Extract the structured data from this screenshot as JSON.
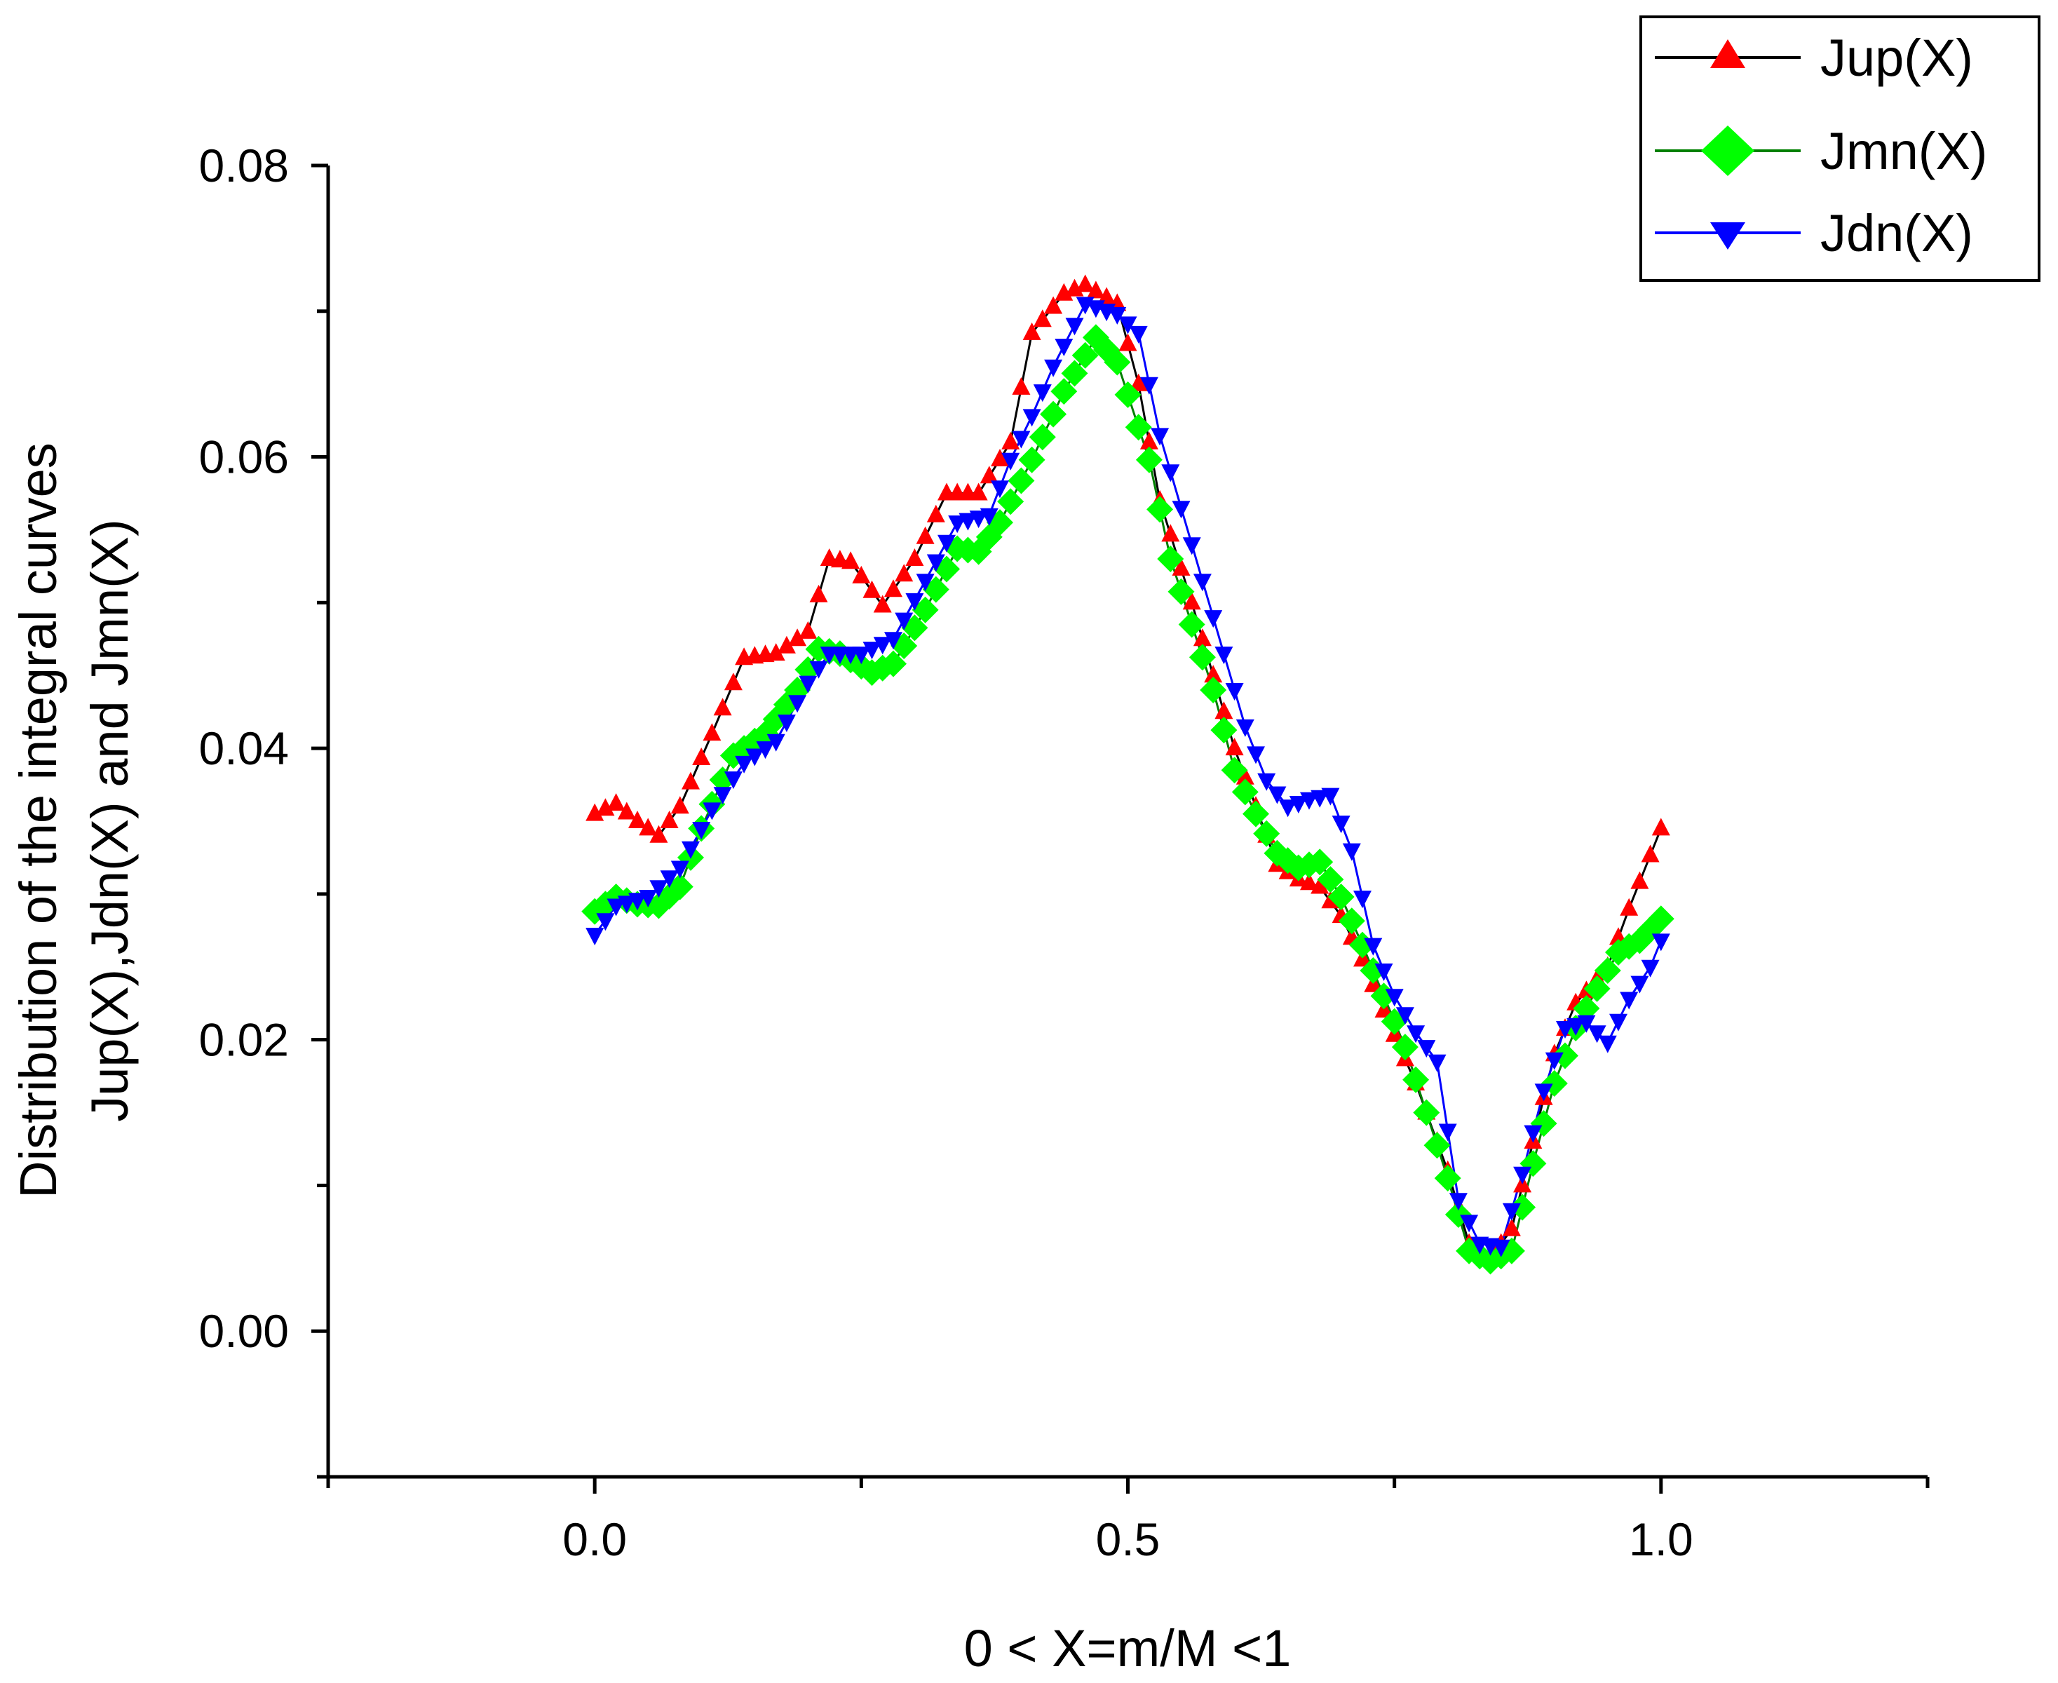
{
  "chart_data": {
    "type": "line",
    "title": "",
    "xlabel": "0 < X=m/M <1",
    "ylabel_lines": [
      "Distribution of the integral curves",
      "Jup(X),Jdn(X) and Jmn(X)"
    ],
    "xlim": [
      -0.25,
      1.25
    ],
    "ylim": [
      -0.01,
      0.08
    ],
    "x_ticks": [
      0.0,
      0.5,
      1.0
    ],
    "x_tick_labels": [
      "0.0",
      "0.5",
      "1.0"
    ],
    "x_minor_ticks": [
      -0.25,
      0.25,
      0.75,
      1.25
    ],
    "y_ticks": [
      0.0,
      0.02,
      0.04,
      0.06,
      0.08
    ],
    "y_tick_labels": [
      "0.00",
      "0.02",
      "0.04",
      "0.06",
      "0.08"
    ],
    "y_minor_ticks": [
      -0.01,
      0.01,
      0.03,
      0.05,
      0.07
    ],
    "grid": false,
    "legend_position": "top-right",
    "sample_step": 0.01,
    "series": [
      {
        "name": "Jup(X)",
        "label": "Jup(X)",
        "line_color": "#000000",
        "marker_color": "#ff0000",
        "marker": "triangle-up",
        "anchors": [
          [
            0.0,
            0.0355
          ],
          [
            0.02,
            0.0362
          ],
          [
            0.04,
            0.035
          ],
          [
            0.06,
            0.034
          ],
          [
            0.08,
            0.036
          ],
          [
            0.11,
            0.041
          ],
          [
            0.14,
            0.0462
          ],
          [
            0.17,
            0.0465
          ],
          [
            0.2,
            0.048
          ],
          [
            0.22,
            0.053
          ],
          [
            0.24,
            0.0528
          ],
          [
            0.27,
            0.0498
          ],
          [
            0.3,
            0.053
          ],
          [
            0.33,
            0.0575
          ],
          [
            0.36,
            0.0575
          ],
          [
            0.39,
            0.061
          ],
          [
            0.41,
            0.0685
          ],
          [
            0.44,
            0.0712
          ],
          [
            0.46,
            0.0718
          ],
          [
            0.49,
            0.0705
          ],
          [
            0.51,
            0.065
          ],
          [
            0.53,
            0.057
          ],
          [
            0.56,
            0.05
          ],
          [
            0.58,
            0.045
          ],
          [
            0.6,
            0.04
          ],
          [
            0.62,
            0.036
          ],
          [
            0.64,
            0.032
          ],
          [
            0.66,
            0.031
          ],
          [
            0.68,
            0.0305
          ],
          [
            0.7,
            0.0285
          ],
          [
            0.72,
            0.0255
          ],
          [
            0.74,
            0.022
          ],
          [
            0.77,
            0.017
          ],
          [
            0.8,
            0.011
          ],
          [
            0.82,
            0.006
          ],
          [
            0.84,
            0.005
          ],
          [
            0.86,
            0.007
          ],
          [
            0.88,
            0.013
          ],
          [
            0.9,
            0.019
          ],
          [
            0.92,
            0.0225
          ],
          [
            0.95,
            0.025
          ],
          [
            0.97,
            0.029
          ],
          [
            1.0,
            0.0345
          ]
        ]
      },
      {
        "name": "Jmn(X)",
        "label": "Jmn(X)",
        "line_color": "#008000",
        "marker_color": "#00ff00",
        "marker": "diamond",
        "anchors": [
          [
            0.0,
            0.0288
          ],
          [
            0.02,
            0.0298
          ],
          [
            0.04,
            0.0293
          ],
          [
            0.06,
            0.0292
          ],
          [
            0.08,
            0.0305
          ],
          [
            0.1,
            0.0345
          ],
          [
            0.13,
            0.0395
          ],
          [
            0.16,
            0.041
          ],
          [
            0.19,
            0.044
          ],
          [
            0.21,
            0.0468
          ],
          [
            0.23,
            0.0465
          ],
          [
            0.26,
            0.0452
          ],
          [
            0.28,
            0.0458
          ],
          [
            0.31,
            0.0495
          ],
          [
            0.34,
            0.0537
          ],
          [
            0.36,
            0.0535
          ],
          [
            0.38,
            0.0555
          ],
          [
            0.41,
            0.0598
          ],
          [
            0.44,
            0.0645
          ],
          [
            0.47,
            0.0682
          ],
          [
            0.49,
            0.0665
          ],
          [
            0.52,
            0.0598
          ],
          [
            0.54,
            0.053
          ],
          [
            0.56,
            0.0485
          ],
          [
            0.58,
            0.044
          ],
          [
            0.6,
            0.0385
          ],
          [
            0.62,
            0.0355
          ],
          [
            0.64,
            0.0328
          ],
          [
            0.66,
            0.0318
          ],
          [
            0.68,
            0.0322
          ],
          [
            0.7,
            0.0298
          ],
          [
            0.72,
            0.0265
          ],
          [
            0.74,
            0.023
          ],
          [
            0.76,
            0.0195
          ],
          [
            0.78,
            0.015
          ],
          [
            0.8,
            0.0105
          ],
          [
            0.82,
            0.0055
          ],
          [
            0.84,
            0.0048
          ],
          [
            0.86,
            0.0055
          ],
          [
            0.88,
            0.0115
          ],
          [
            0.9,
            0.017
          ],
          [
            0.92,
            0.0208
          ],
          [
            0.94,
            0.0235
          ],
          [
            0.96,
            0.026
          ],
          [
            0.98,
            0.0268
          ],
          [
            1.0,
            0.0283
          ]
        ]
      },
      {
        "name": "Jdn(X)",
        "label": "Jdn(X)",
        "line_color": "#0000ff",
        "marker_color": "#0000ff",
        "marker": "triangle-down",
        "anchors": [
          [
            0.0,
            0.0272
          ],
          [
            0.02,
            0.0292
          ],
          [
            0.05,
            0.0298
          ],
          [
            0.08,
            0.0318
          ],
          [
            0.11,
            0.0358
          ],
          [
            0.14,
            0.039
          ],
          [
            0.17,
            0.0405
          ],
          [
            0.2,
            0.0445
          ],
          [
            0.22,
            0.0465
          ],
          [
            0.25,
            0.0465
          ],
          [
            0.28,
            0.0475
          ],
          [
            0.31,
            0.0515
          ],
          [
            0.34,
            0.0555
          ],
          [
            0.37,
            0.056
          ],
          [
            0.39,
            0.0598
          ],
          [
            0.41,
            0.0628
          ],
          [
            0.43,
            0.0662
          ],
          [
            0.46,
            0.0705
          ],
          [
            0.49,
            0.0698
          ],
          [
            0.51,
            0.0685
          ],
          [
            0.53,
            0.0615
          ],
          [
            0.55,
            0.0565
          ],
          [
            0.57,
            0.0515
          ],
          [
            0.59,
            0.0465
          ],
          [
            0.61,
            0.0415
          ],
          [
            0.63,
            0.0378
          ],
          [
            0.65,
            0.036
          ],
          [
            0.67,
            0.0365
          ],
          [
            0.69,
            0.0368
          ],
          [
            0.71,
            0.033
          ],
          [
            0.73,
            0.0265
          ],
          [
            0.75,
            0.023
          ],
          [
            0.77,
            0.0205
          ],
          [
            0.79,
            0.0185
          ],
          [
            0.81,
            0.009
          ],
          [
            0.83,
            0.006
          ],
          [
            0.85,
            0.0058
          ],
          [
            0.87,
            0.0108
          ],
          [
            0.89,
            0.0165
          ],
          [
            0.91,
            0.0208
          ],
          [
            0.93,
            0.0212
          ],
          [
            0.95,
            0.0198
          ],
          [
            0.97,
            0.0228
          ],
          [
            0.99,
            0.025
          ],
          [
            1.0,
            0.0268
          ]
        ]
      }
    ]
  }
}
